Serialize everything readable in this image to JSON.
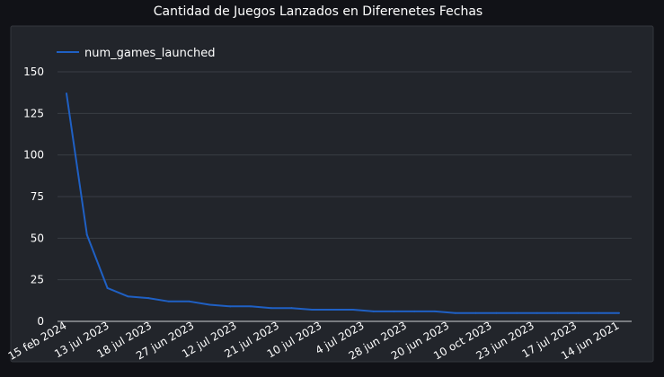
{
  "chart_data": {
    "type": "line",
    "title": "Cantidad de Juegos Lanzados en Diferenetes Fechas",
    "xlabel": "",
    "ylabel": "",
    "ylim": [
      0,
      150
    ],
    "y_ticks": [
      0,
      25,
      50,
      75,
      100,
      125,
      150
    ],
    "x_tick_labels": [
      "15 feb 2024",
      "13 jul 2023",
      "18 jul 2023",
      "27 jun 2023",
      "12 jul 2023",
      "21 jul 2023",
      "10 jul 2023",
      "4 jul 2023",
      "28 jun 2023",
      "20 jun 2023",
      "10 oct 2023",
      "23 jun 2023",
      "17 jul 2023",
      "14 jun 2021"
    ],
    "grid": true,
    "legend_position": "top-left",
    "colors": {
      "background": "#111217",
      "panel": "#22252b",
      "panel_border": "#34373d",
      "grid": "#3a3d44",
      "text": "#ffffff",
      "line": "#1f60c4"
    },
    "series": [
      {
        "name": "num_games_launched",
        "values": [
          137,
          52,
          20,
          15,
          14,
          12,
          12,
          10,
          9,
          9,
          8,
          8,
          7,
          7,
          7,
          6,
          6,
          6,
          6,
          5,
          5,
          5,
          5,
          5,
          5,
          5,
          5,
          5
        ]
      }
    ]
  }
}
